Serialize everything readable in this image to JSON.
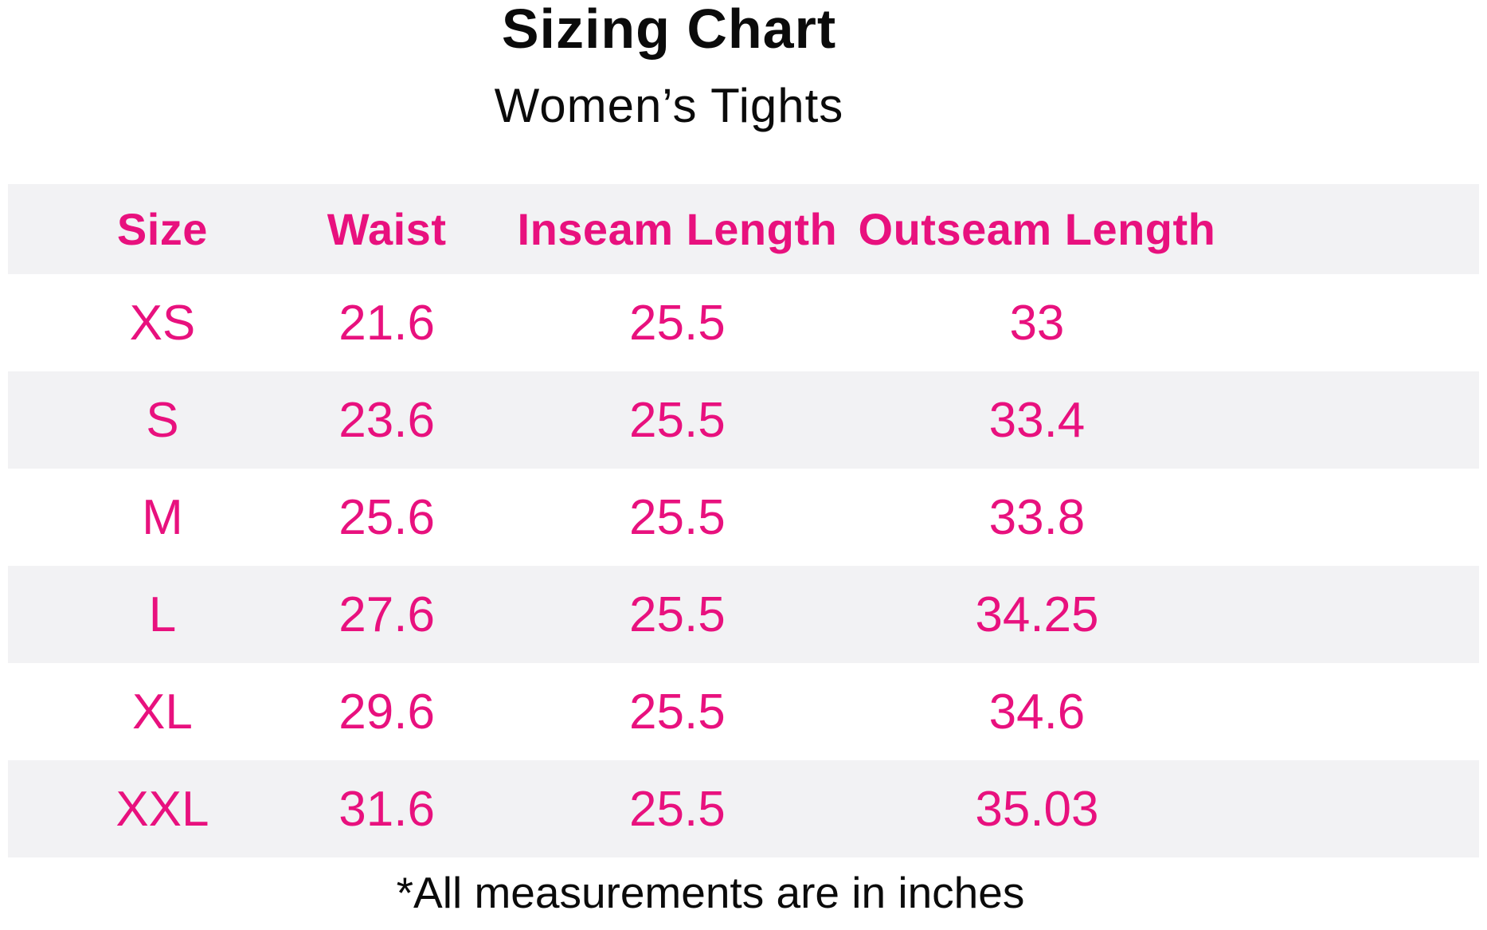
{
  "title": "Sizing Chart",
  "subtitle": "Women’s Tights",
  "footnote": "*All measurements are in inches",
  "colors": {
    "accent_pink": "#e8117e",
    "row_stripe_gray": "#f2f2f4",
    "text_black": "#0b0b0b",
    "background": "#ffffff"
  },
  "chart_data": {
    "type": "table",
    "title": "Sizing Chart",
    "subtitle": "Women’s Tights",
    "columns": [
      "Size",
      "Waist",
      "Inseam Length",
      "Outseam Length"
    ],
    "rows": [
      [
        "XS",
        "21.6",
        "25.5",
        "33"
      ],
      [
        "S",
        "23.6",
        "25.5",
        "33.4"
      ],
      [
        "M",
        "25.6",
        "25.5",
        "33.8"
      ],
      [
        "L",
        "27.6",
        "25.5",
        "34.25"
      ],
      [
        "XL",
        "29.6",
        "25.5",
        "34.6"
      ],
      [
        "XXL",
        "31.6",
        "25.5",
        "35.03"
      ]
    ],
    "footnote": "*All measurements are in inches",
    "units": "inches",
    "layout": {
      "striped_rows": [
        "header",
        "S",
        "L",
        "XXL"
      ],
      "text_alignment": "center"
    }
  }
}
